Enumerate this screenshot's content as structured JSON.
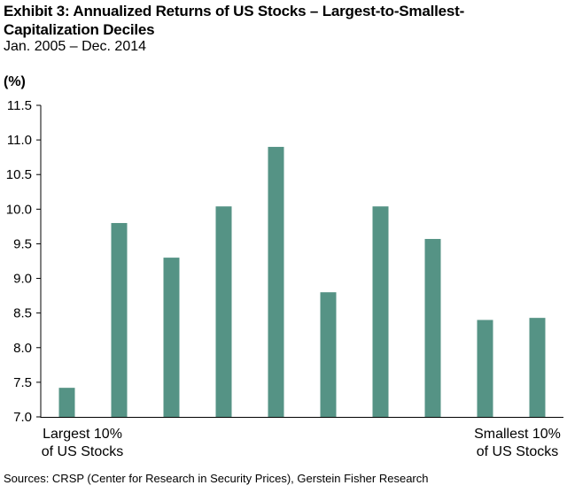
{
  "title": "Exhibit 3: Annualized Returns of US Stocks – Largest-to-Smallest-Capitalization Deciles",
  "subtitle": "Jan. 2005 – Dec. 2014",
  "unit_label": "(%)",
  "source": "Sources: CRSP (Center for Research in Security Prices), Gerstein Fisher Research",
  "chart_data": {
    "type": "bar",
    "title": "Exhibit 3: Annualized Returns of US Stocks – Largest-to-Smallest-Capitalization Deciles",
    "subtitle": "Jan. 2005 – Dec. 2014",
    "xlabel": "",
    "ylabel": "(%)",
    "categories": [
      "Largest 10% of US Stocks",
      "",
      "",
      "",
      "",
      "",
      "",
      "",
      "",
      "Smallest 10% of US Stocks"
    ],
    "values": [
      7.42,
      9.8,
      9.3,
      10.04,
      10.9,
      8.8,
      10.04,
      9.57,
      8.4,
      8.43
    ],
    "ylim": [
      7.0,
      11.5
    ],
    "yticks": [
      "7.0",
      "7.5",
      "8.0",
      "8.5",
      "9.0",
      "9.5",
      "10.0",
      "10.5",
      "11.0",
      "11.5"
    ],
    "grid": false,
    "legend": "none",
    "bar_color": "#559385",
    "left_label_line1": "Largest 10%",
    "left_label_line2": "of US Stocks",
    "right_label_line1": "Smallest 10%",
    "right_label_line2": "of US Stocks"
  }
}
